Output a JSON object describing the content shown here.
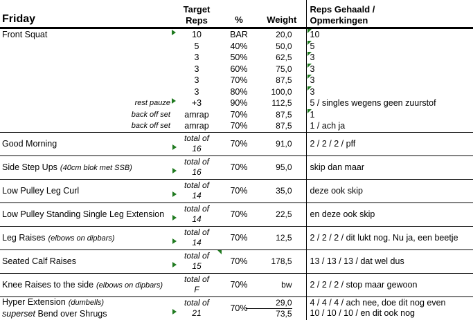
{
  "colors": {
    "background": "#ffffff",
    "grid_line": "#000000",
    "marker_green": "#1f7a1f"
  },
  "icons": {
    "overflow_marker": "small right-pointing green triangle at cell edge",
    "number_as_text_flag": "green top-left corner triangle in result cells"
  },
  "header": {
    "day": "Friday",
    "target_line1": "Target",
    "target_line2": "Reps",
    "percent": "%",
    "weight": "Weight",
    "results_line1": "Reps Gehaald /",
    "results_line2": "Opmerkingen"
  },
  "front_squat": {
    "name": "Front Squat",
    "sets": [
      {
        "label": "",
        "target": "10",
        "pct": "BAR",
        "weight": "20,0",
        "result": "10",
        "result_flag": true
      },
      {
        "label": "",
        "target": "5",
        "pct": "40%",
        "weight": "50,0",
        "result": "5",
        "result_flag": true
      },
      {
        "label": "",
        "target": "3",
        "pct": "50%",
        "weight": "62,5",
        "result": "3",
        "result_flag": true
      },
      {
        "label": "",
        "target": "3",
        "pct": "60%",
        "weight": "75,0",
        "result": "3",
        "result_flag": true
      },
      {
        "label": "",
        "target": "3",
        "pct": "70%",
        "weight": "87,5",
        "result": "3",
        "result_flag": true
      },
      {
        "label": "",
        "target": "3",
        "pct": "80%",
        "weight": "100,0",
        "result": "3",
        "result_flag": true
      },
      {
        "label": "rest pauze",
        "target": "+3",
        "pct": "90%",
        "weight": "112,5",
        "result": "5 / singles wegens geen zuurstof",
        "result_flag": false
      },
      {
        "label": "back off set",
        "target": "amrap",
        "pct": "70%",
        "weight": "87,5",
        "result": "1",
        "result_flag": true
      },
      {
        "label": "back off set",
        "target": "amrap",
        "pct": "70%",
        "weight": "87,5",
        "result": "1 / ach ja",
        "result_flag": false
      }
    ]
  },
  "exercises": [
    {
      "name": "Good Morning",
      "note": "",
      "target_label": "total of",
      "target_value": "16",
      "pct": "70%",
      "weight": "91,0",
      "result": "2 / 2 / 2 / pff",
      "marker": true
    },
    {
      "name": "Side Step Ups",
      "note": "(40cm blok met SSB)",
      "target_label": "total of",
      "target_value": "16",
      "pct": "70%",
      "weight": "95,0",
      "result": "skip dan maar",
      "marker": true
    },
    {
      "name": "Low Pulley Leg Curl",
      "note": "",
      "target_label": "total of",
      "target_value": "14",
      "pct": "70%",
      "weight": "35,0",
      "result": "deze ook skip",
      "marker": true
    },
    {
      "name": "Low Pulley Standing Single Leg Extension",
      "note": "",
      "target_label": "total of",
      "target_value": "14",
      "pct": "70%",
      "weight": "22,5",
      "result": "en deze ook skip",
      "marker": true
    },
    {
      "name": "Leg Raises",
      "note": "(elbows on dipbars)",
      "target_label": "total of",
      "target_value": "14",
      "pct": "70%",
      "weight": "12,5",
      "result": "2 / 2 / 2 / dit lukt nog. Nu ja, een beetje",
      "marker": true
    },
    {
      "name": "Seated Calf Raises",
      "note": "",
      "target_label": "total of",
      "target_value": "15",
      "pct": "70%",
      "weight": "178,5",
      "result": "13 / 13 / 13 / dat wel dus",
      "marker": true,
      "corner_marker": true
    },
    {
      "name": "Knee Raises to the side",
      "note": "(elbows on dipbars)",
      "target_label": "total of",
      "target_value": "F",
      "pct": "70%",
      "weight": "bw",
      "result": "2 / 2 / 2 / stop maar gewoon",
      "marker": false
    }
  ],
  "superset_row": {
    "name1": "Hyper Extension",
    "note1": "(dumbells)",
    "name2_italic": "superset",
    "name2": "Bend over Shrugs",
    "target_label": "total of",
    "target_value": "21",
    "pct": "70%",
    "weight_top": "29,0",
    "weight_bottom": "73,5",
    "result_top": "4 / 4 / 4 / ach nee, doe dit nog even",
    "result_bottom": "10 / 10 / 10 / en dit ook nog",
    "marker": true
  }
}
